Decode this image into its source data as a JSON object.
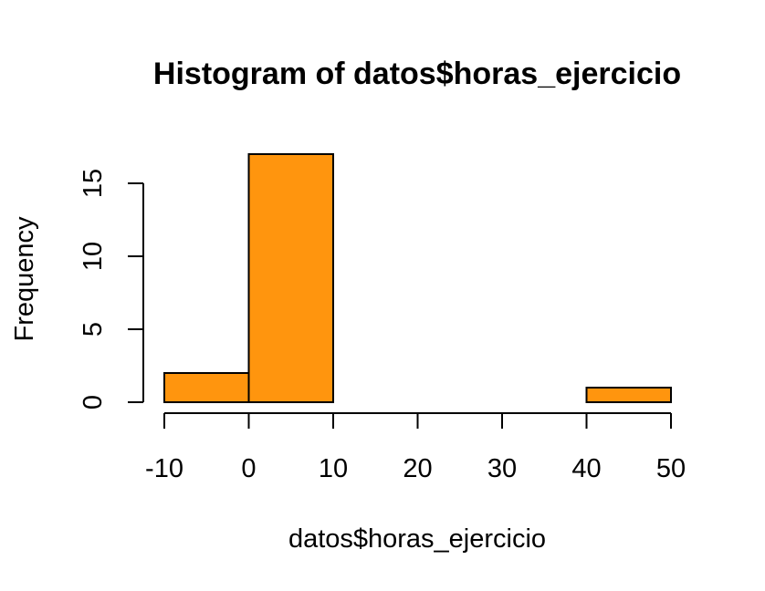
{
  "chart_data": {
    "type": "bar",
    "subtype": "histogram",
    "title": "Histogram of datos$horas_ejercicio",
    "xlabel": "datos$horas_ejercicio",
    "ylabel": "Frequency",
    "bins": [
      {
        "start": -10,
        "end": 0,
        "count": 2
      },
      {
        "start": 0,
        "end": 10,
        "count": 17
      },
      {
        "start": 10,
        "end": 20,
        "count": 0
      },
      {
        "start": 20,
        "end": 30,
        "count": 0
      },
      {
        "start": 30,
        "end": 40,
        "count": 0
      },
      {
        "start": 40,
        "end": 50,
        "count": 1
      }
    ],
    "xlim": [
      -10,
      50
    ],
    "ylim": [
      0,
      17
    ],
    "x_ticks": [
      "-10",
      "0",
      "10",
      "20",
      "30",
      "40",
      "50"
    ],
    "y_ticks": [
      "0",
      "5",
      "10",
      "15"
    ],
    "bar_color": "#ff950e",
    "border_color": "#000000",
    "grid": false
  }
}
